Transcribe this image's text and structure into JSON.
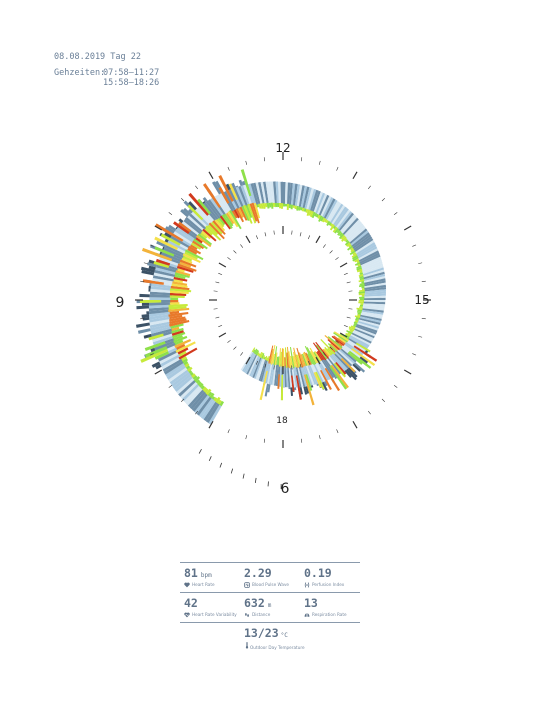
{
  "header": {
    "date_line": "08.08.2019 Tag 22",
    "times_label": "Gehzeiten:",
    "times": [
      "07:58–11:27",
      "15:58–18:26"
    ]
  },
  "chart_data": {
    "type": "radial-bar",
    "clock_labels": [
      {
        "label": "12",
        "hour": 12
      },
      {
        "label": "15",
        "hour": 15
      },
      {
        "label": "18",
        "hour": 18
      },
      {
        "label": "9",
        "hour": 9
      },
      {
        "label": "6",
        "hour": 6
      }
    ],
    "walking_periods": [
      {
        "start": "07:58",
        "end": "11:27"
      },
      {
        "start": "15:58",
        "end": "18:26"
      }
    ],
    "scale_colors": [
      "#3c5266",
      "#6f8fa8",
      "#a9c9e0",
      "#d8e8f2",
      "#8ee04a",
      "#c7ea3a",
      "#f4e04a",
      "#f3b33a",
      "#e8792a",
      "#d23a1e"
    ]
  },
  "stats": {
    "heart_rate": {
      "value": "81",
      "unit": "bpm",
      "label": "Heart Rate"
    },
    "blood_pulse_wave": {
      "value": "2.29",
      "unit": "",
      "label": "Blood Pulse Wave"
    },
    "perfusion_index": {
      "value": "0.19",
      "unit": "",
      "label": "Perfusion Index"
    },
    "heart_rate_variability": {
      "value": "42",
      "unit": "",
      "label": "Heart Rate Variability"
    },
    "distance": {
      "value": "632",
      "unit": "m",
      "label": "Distance"
    },
    "respiration_rate": {
      "value": "13",
      "unit": "",
      "label": "Respiration Rate"
    },
    "temperature": {
      "value": "13/23",
      "unit": "°C",
      "label": "Outdoor Day Temperature"
    }
  }
}
